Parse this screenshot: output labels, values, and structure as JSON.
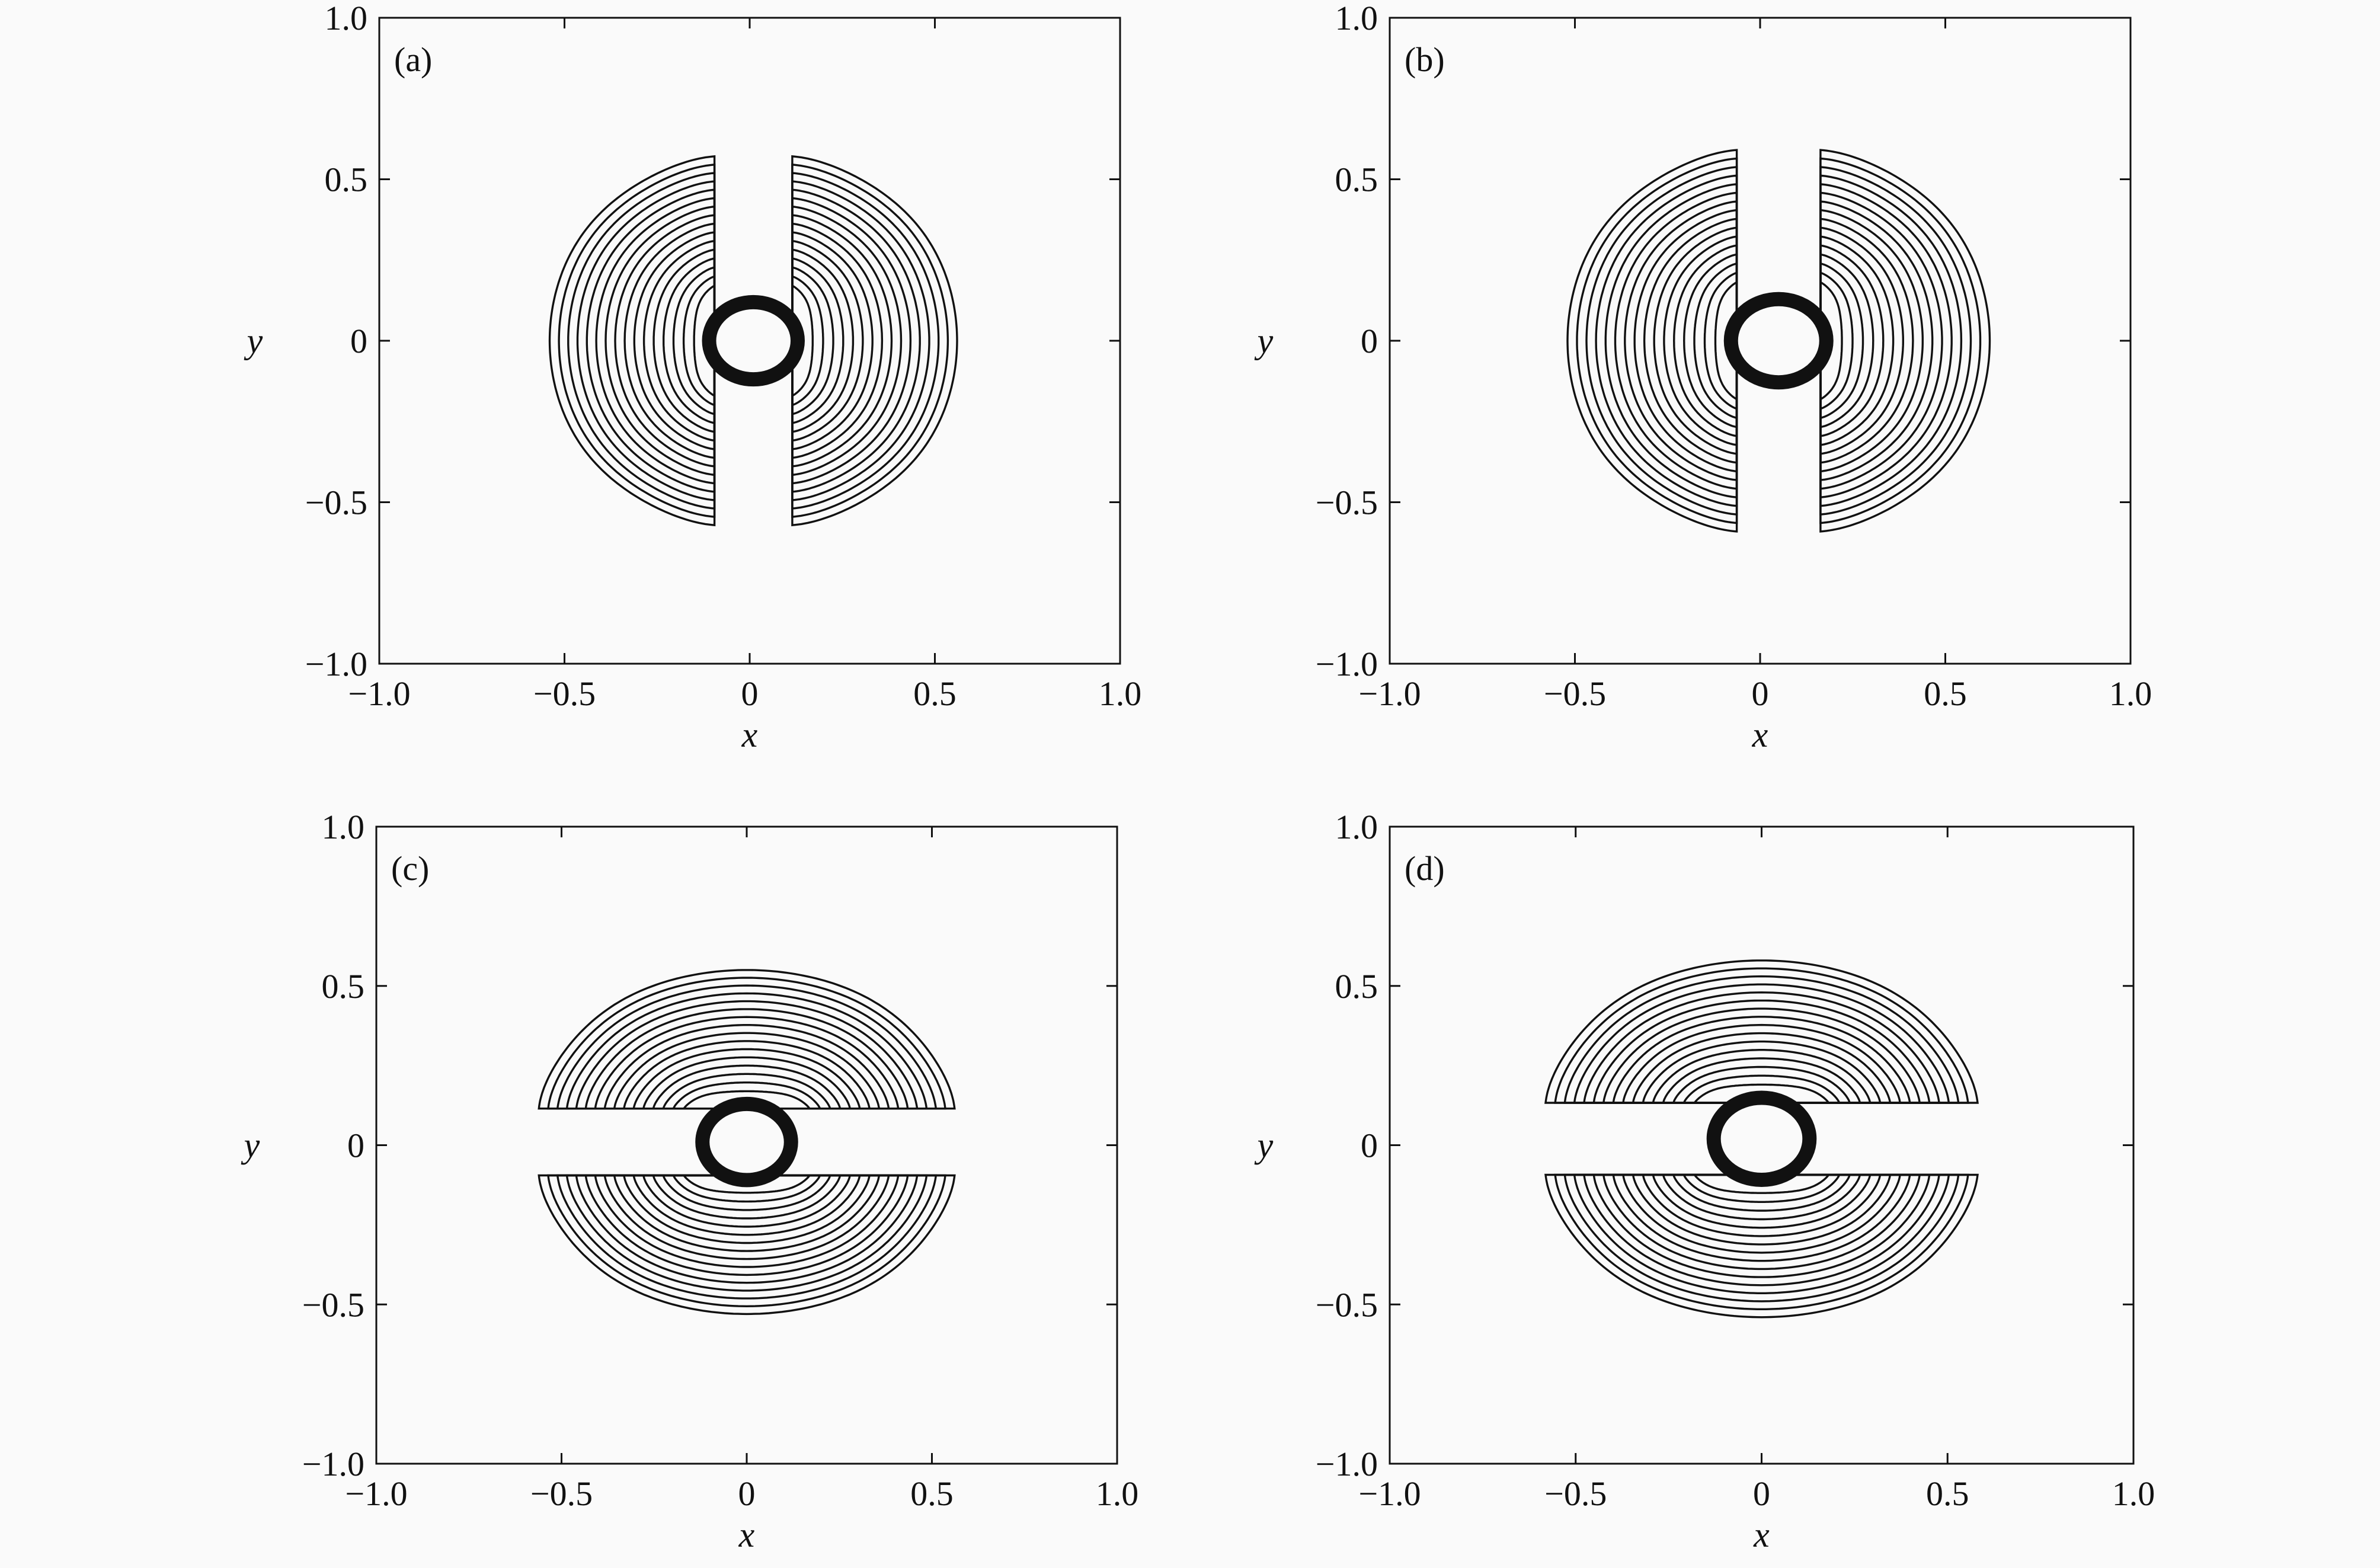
{
  "chart_data": [
    {
      "type": "contour",
      "panel_label": "(a)",
      "xlabel": "x",
      "ylabel": "y",
      "xlim": [
        -1.0,
        1.0
      ],
      "ylim": [
        -1.0,
        1.0
      ],
      "xticks": [
        -1.0,
        -0.5,
        0,
        0.5,
        1.0
      ],
      "yticks": [
        1.0,
        0.5,
        0,
        -0.5,
        -1.0
      ],
      "xtick_labels": [
        "−1.0",
        "−0.5",
        "0",
        "0.5",
        "1.0"
      ],
      "ytick_labels": [
        "1.0",
        "0.5",
        "0",
        "−0.5",
        "−1.0"
      ],
      "pattern": "lobes-horizontal",
      "core_center": [
        0.01,
        0.0
      ],
      "core_radius": 0.13,
      "outer_extent": 0.55,
      "levels": 16
    },
    {
      "type": "contour",
      "panel_label": "(b)",
      "xlabel": "x",
      "ylabel": "y",
      "xlim": [
        -1.0,
        1.0
      ],
      "ylim": [
        -1.0,
        1.0
      ],
      "xticks": [
        -1.0,
        -0.5,
        0,
        0.5,
        1.0
      ],
      "yticks": [
        1.0,
        0.5,
        0,
        -0.5,
        -1.0
      ],
      "xtick_labels": [
        "−1.0",
        "−0.5",
        "0",
        "0.5",
        "1.0"
      ],
      "ytick_labels": [
        "1.0",
        "0.5",
        "0",
        "−0.5",
        "−1.0"
      ],
      "pattern": "lobes-horizontal",
      "core_center": [
        0.05,
        0.0
      ],
      "core_radius": 0.14,
      "outer_extent": 0.57,
      "levels": 16
    },
    {
      "type": "contour",
      "panel_label": "(c)",
      "xlabel": "x",
      "ylabel": "y",
      "xlim": [
        -1.0,
        1.0
      ],
      "ylim": [
        -1.0,
        1.0
      ],
      "xticks": [
        -1.0,
        -0.5,
        0,
        0.5,
        1.0
      ],
      "yticks": [
        1.0,
        0.5,
        0,
        -0.5,
        -1.0
      ],
      "xtick_labels": [
        "−1.0",
        "−0.5",
        "0",
        "0.5",
        "1.0"
      ],
      "ytick_labels": [
        "1.0",
        "0.5",
        "0",
        "−0.5",
        "−1.0"
      ],
      "pattern": "lobes-vertical",
      "core_center": [
        0.0,
        0.01
      ],
      "core_radius": 0.13,
      "outer_extent": 0.54,
      "levels": 16
    },
    {
      "type": "contour",
      "panel_label": "(d)",
      "xlabel": "x",
      "ylabel": "y",
      "xlim": [
        -1.0,
        1.0
      ],
      "ylim": [
        -1.0,
        1.0
      ],
      "xticks": [
        -1.0,
        -0.5,
        0,
        0.5,
        1.0
      ],
      "yticks": [
        1.0,
        0.5,
        0,
        -0.5,
        -1.0
      ],
      "xtick_labels": [
        "−1.0",
        "−0.5",
        "0",
        "0.5",
        "1.0"
      ],
      "ytick_labels": [
        "1.0",
        "0.5",
        "0",
        "−0.5",
        "−1.0"
      ],
      "pattern": "lobes-vertical",
      "core_center": [
        0.0,
        0.02
      ],
      "core_radius": 0.14,
      "outer_extent": 0.56,
      "levels": 16
    }
  ]
}
